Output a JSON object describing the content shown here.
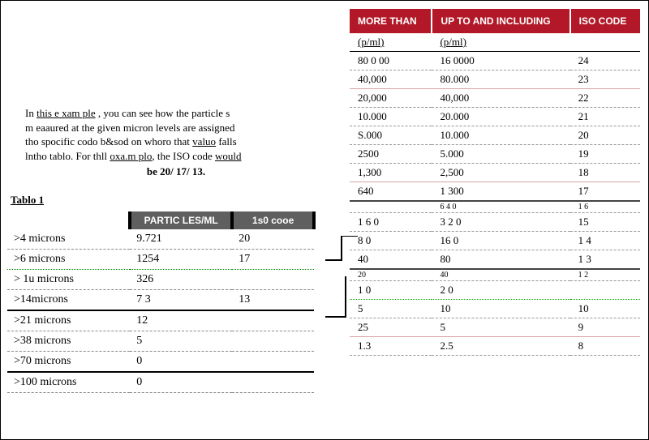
{
  "intro": {
    "line1_a": "In ",
    "line1_b": "this e xam ple",
    "line1_c": " , you can see  how the particle s",
    "line2": "m eaaured at the given micron  levels are assigned",
    "line3_a": "tho spocific codo b&sod on whoro that ",
    "line3_b": "valuo",
    "line3_c": " falls",
    "line4_a": "lntho  tablo. For thll ",
    "line4_b": "oxa.m plo",
    "line4_c": ", the ISO code ",
    "line4_d": "would",
    "center": "be 20/ 17/ 13."
  },
  "tbl1": {
    "label": "Tablo 1",
    "head_particles": "PARTIC LES/ML",
    "head_iso": "1s0 cooe",
    "rows": [
      {
        "c1": ">4 microns",
        "c2": "9.721",
        "c3": "20"
      },
      {
        "c1": ">6  microns",
        "c2": "1254",
        "c3": "17"
      },
      {
        "c1": "> 1u microns",
        "c2": "326",
        "c3": ""
      },
      {
        "c1": ">14microns",
        "c2": "7 3",
        "c3": "13"
      },
      {
        "c1": ">21 microns",
        "c2": "12",
        "c3": ""
      },
      {
        "c1": ">38 microns",
        "c2": "5",
        "c3": ""
      },
      {
        "c1": ">70 microns",
        "c2": "0",
        "c3": ""
      },
      {
        "c1": ">100 microns",
        "c2": "0",
        "c3": ""
      }
    ]
  },
  "tbl2": {
    "head1": "MORE THAN",
    "head2": "UP TO AND INCLUDING",
    "head3": "ISO CODE",
    "unit": "(p/ml)",
    "rows": [
      {
        "a": "80  0 00",
        "b": "16 0000",
        "c": "24"
      },
      {
        "a": "40,000",
        "b": "80.000",
        "c": "23"
      },
      {
        "a": "20,000",
        "b": "40,000",
        "c": "22"
      },
      {
        "a": "10.000",
        "b": "20.000",
        "c": "21"
      },
      {
        "a": "S.000",
        "b": "10.000",
        "c": "20"
      },
      {
        "a": "2500",
        "b": "5.000",
        "c": "19"
      },
      {
        "a": "1,300",
        "b": "2,500",
        "c": "18"
      },
      {
        "a": "640",
        "b": "1 300",
        "c": "17"
      },
      {
        "a": "",
        "b": "6 4 0",
        "c": "1 6"
      },
      {
        "a": "1 6 0",
        "b": "3 2 0",
        "c": "15"
      },
      {
        "a": "8 0",
        "b": "16  0",
        "c": "1 4"
      },
      {
        "a": "40",
        "b": "80",
        "c": "1 3"
      },
      {
        "a": "20",
        "b": "40",
        "c": "1 2"
      },
      {
        "a": "1 0",
        "b": "2 0",
        "c": ""
      },
      {
        "a": "5",
        "b": "10",
        "c": "10"
      },
      {
        "a": "25",
        "b": "5",
        "c": "9"
      },
      {
        "a": "1.3",
        "b": "2.5",
        "c": "8"
      }
    ]
  },
  "colors": {
    "header_bg": "#b21827",
    "header_fg": "#ffffff",
    "grey_bg": "#5f5f5f"
  }
}
